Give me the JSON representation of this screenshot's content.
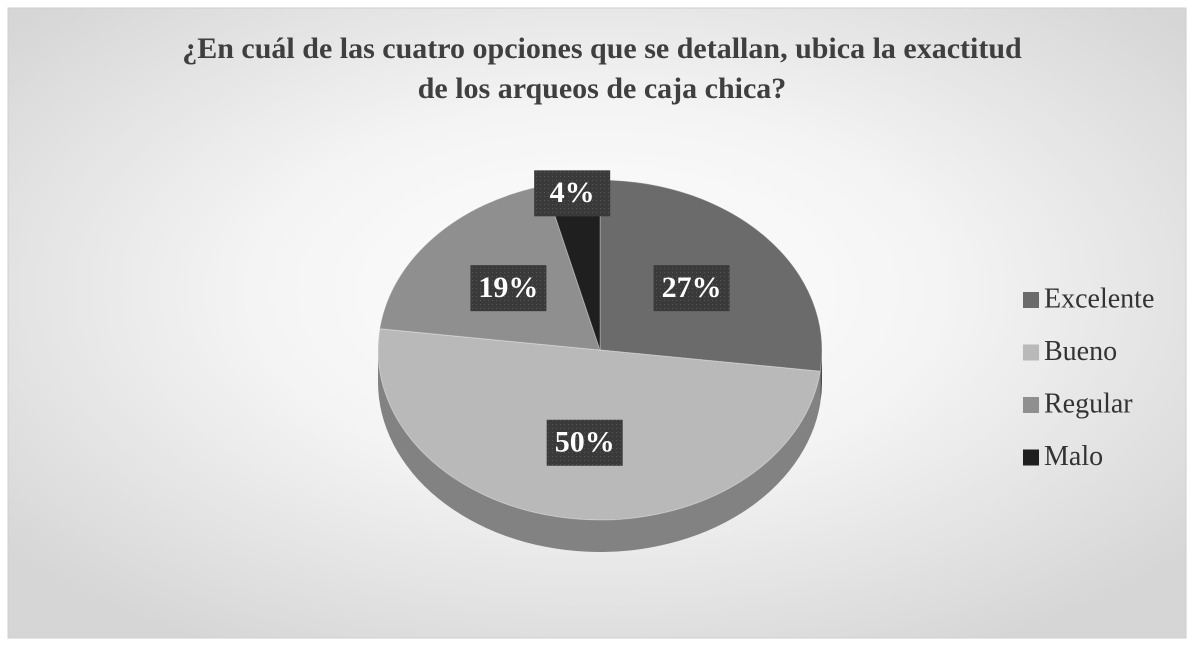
{
  "chart_data": {
    "type": "pie",
    "title": [
      "¿En cuál de las cuatro opciones que se detallan, ubica la exactitud",
      "de los arqueos de caja chica?"
    ],
    "categories": [
      "Excelente",
      "Bueno",
      "Regular",
      "Malo"
    ],
    "values": [
      27,
      50,
      19,
      4
    ],
    "value_labels": [
      "27%",
      "50%",
      "19%",
      "4%"
    ],
    "colors": [
      "#6b6b6b",
      "#b9b9b9",
      "#8f8f8f",
      "#1f1f1f"
    ],
    "legend": "right"
  }
}
